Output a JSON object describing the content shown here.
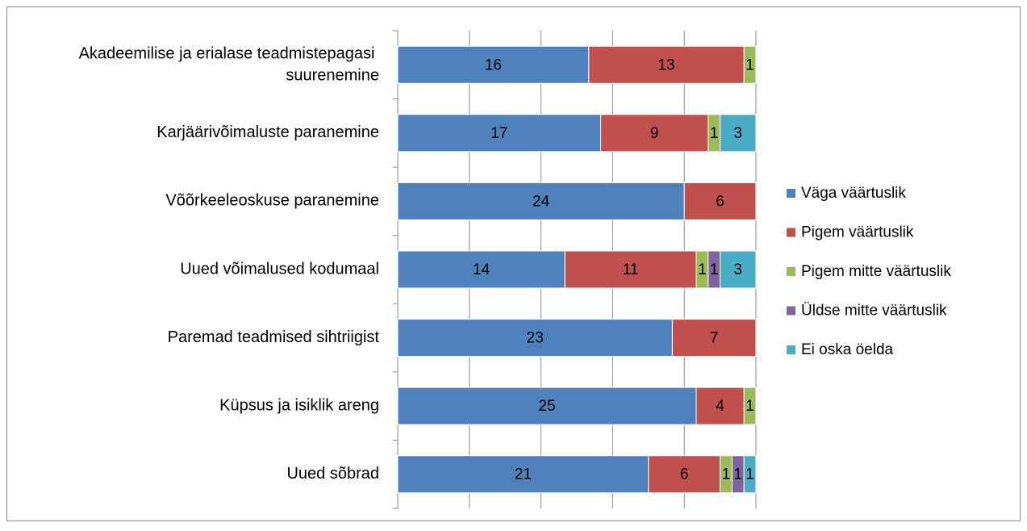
{
  "chart_data": {
    "type": "stacked-bar-horizontal",
    "categories": [
      "Akadeemilise ja erialase teadmistepagasi suurenemine",
      "Karjäärivõimaluste paranemine",
      "Võõrkeeleoskuse paranemine",
      "Uued võimalused kodumaal",
      "Paremad teadmised sihtriigist",
      "Küpsus ja isiklik areng",
      "Uued sõbrad"
    ],
    "series": [
      {
        "name": "Väga väärtuslik",
        "color": "#4f81bd",
        "values": [
          16,
          17,
          24,
          14,
          23,
          25,
          21
        ]
      },
      {
        "name": "Pigem väärtuslik",
        "color": "#c0504d",
        "values": [
          13,
          9,
          6,
          11,
          7,
          4,
          6
        ]
      },
      {
        "name": "Pigem mitte väärtuslik",
        "color": "#9bbb59",
        "values": [
          1,
          1,
          null,
          1,
          null,
          1,
          1
        ]
      },
      {
        "name": "Üldse mitte väärtuslik",
        "color": "#8064a2",
        "values": [
          null,
          null,
          null,
          1,
          null,
          null,
          1
        ]
      },
      {
        "name": "Ei oska öelda",
        "color": "#4bacc6",
        "values": [
          null,
          3,
          null,
          3,
          null,
          null,
          1
        ]
      }
    ],
    "xlim": [
      0,
      30
    ],
    "xticks": [
      0,
      6,
      12,
      18,
      24,
      30
    ],
    "grid": true,
    "legend": "right"
  }
}
